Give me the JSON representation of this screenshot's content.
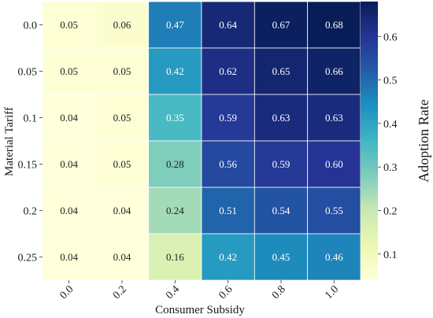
{
  "chart_data": {
    "type": "heatmap",
    "title": "",
    "xlabel": "Consumer Subsidy",
    "ylabel": "Material Tariff",
    "x_categories": [
      "0.0",
      "0.2",
      "0.4",
      "0.6",
      "0.8",
      "1.0"
    ],
    "y_categories": [
      "0.0",
      "0.05",
      "0.1",
      "0.15",
      "0.2",
      "0.25"
    ],
    "values": [
      [
        0.05,
        0.06,
        0.47,
        0.64,
        0.67,
        0.68
      ],
      [
        0.05,
        0.05,
        0.42,
        0.62,
        0.65,
        0.66
      ],
      [
        0.04,
        0.05,
        0.35,
        0.59,
        0.63,
        0.63
      ],
      [
        0.04,
        0.05,
        0.28,
        0.56,
        0.59,
        0.6
      ],
      [
        0.04,
        0.04,
        0.24,
        0.51,
        0.54,
        0.55
      ],
      [
        0.04,
        0.04,
        0.16,
        0.42,
        0.45,
        0.46
      ]
    ],
    "value_labels": [
      [
        "0.05",
        "0.06",
        "0.47",
        "0.64",
        "0.67",
        "0.68"
      ],
      [
        "0.05",
        "0.05",
        "0.42",
        "0.62",
        "0.65",
        "0.66"
      ],
      [
        "0.04",
        "0.05",
        "0.35",
        "0.59",
        "0.63",
        "0.63"
      ],
      [
        "0.04",
        "0.05",
        "0.28",
        "0.56",
        "0.59",
        "0.60"
      ],
      [
        "0.04",
        "0.04",
        "0.24",
        "0.51",
        "0.54",
        "0.55"
      ],
      [
        "0.04",
        "0.04",
        "0.16",
        "0.42",
        "0.45",
        "0.46"
      ]
    ],
    "colormap": "YlGnBu",
    "colorbar": {
      "label": "Adoption Rate",
      "range": [
        0.04,
        0.68
      ],
      "ticks": [
        0.1,
        0.2,
        0.3,
        0.4,
        0.5,
        0.6
      ],
      "tick_labels": [
        "0.1",
        "0.2",
        "0.3",
        "0.4",
        "0.5",
        "0.6"
      ]
    },
    "grid": false
  }
}
